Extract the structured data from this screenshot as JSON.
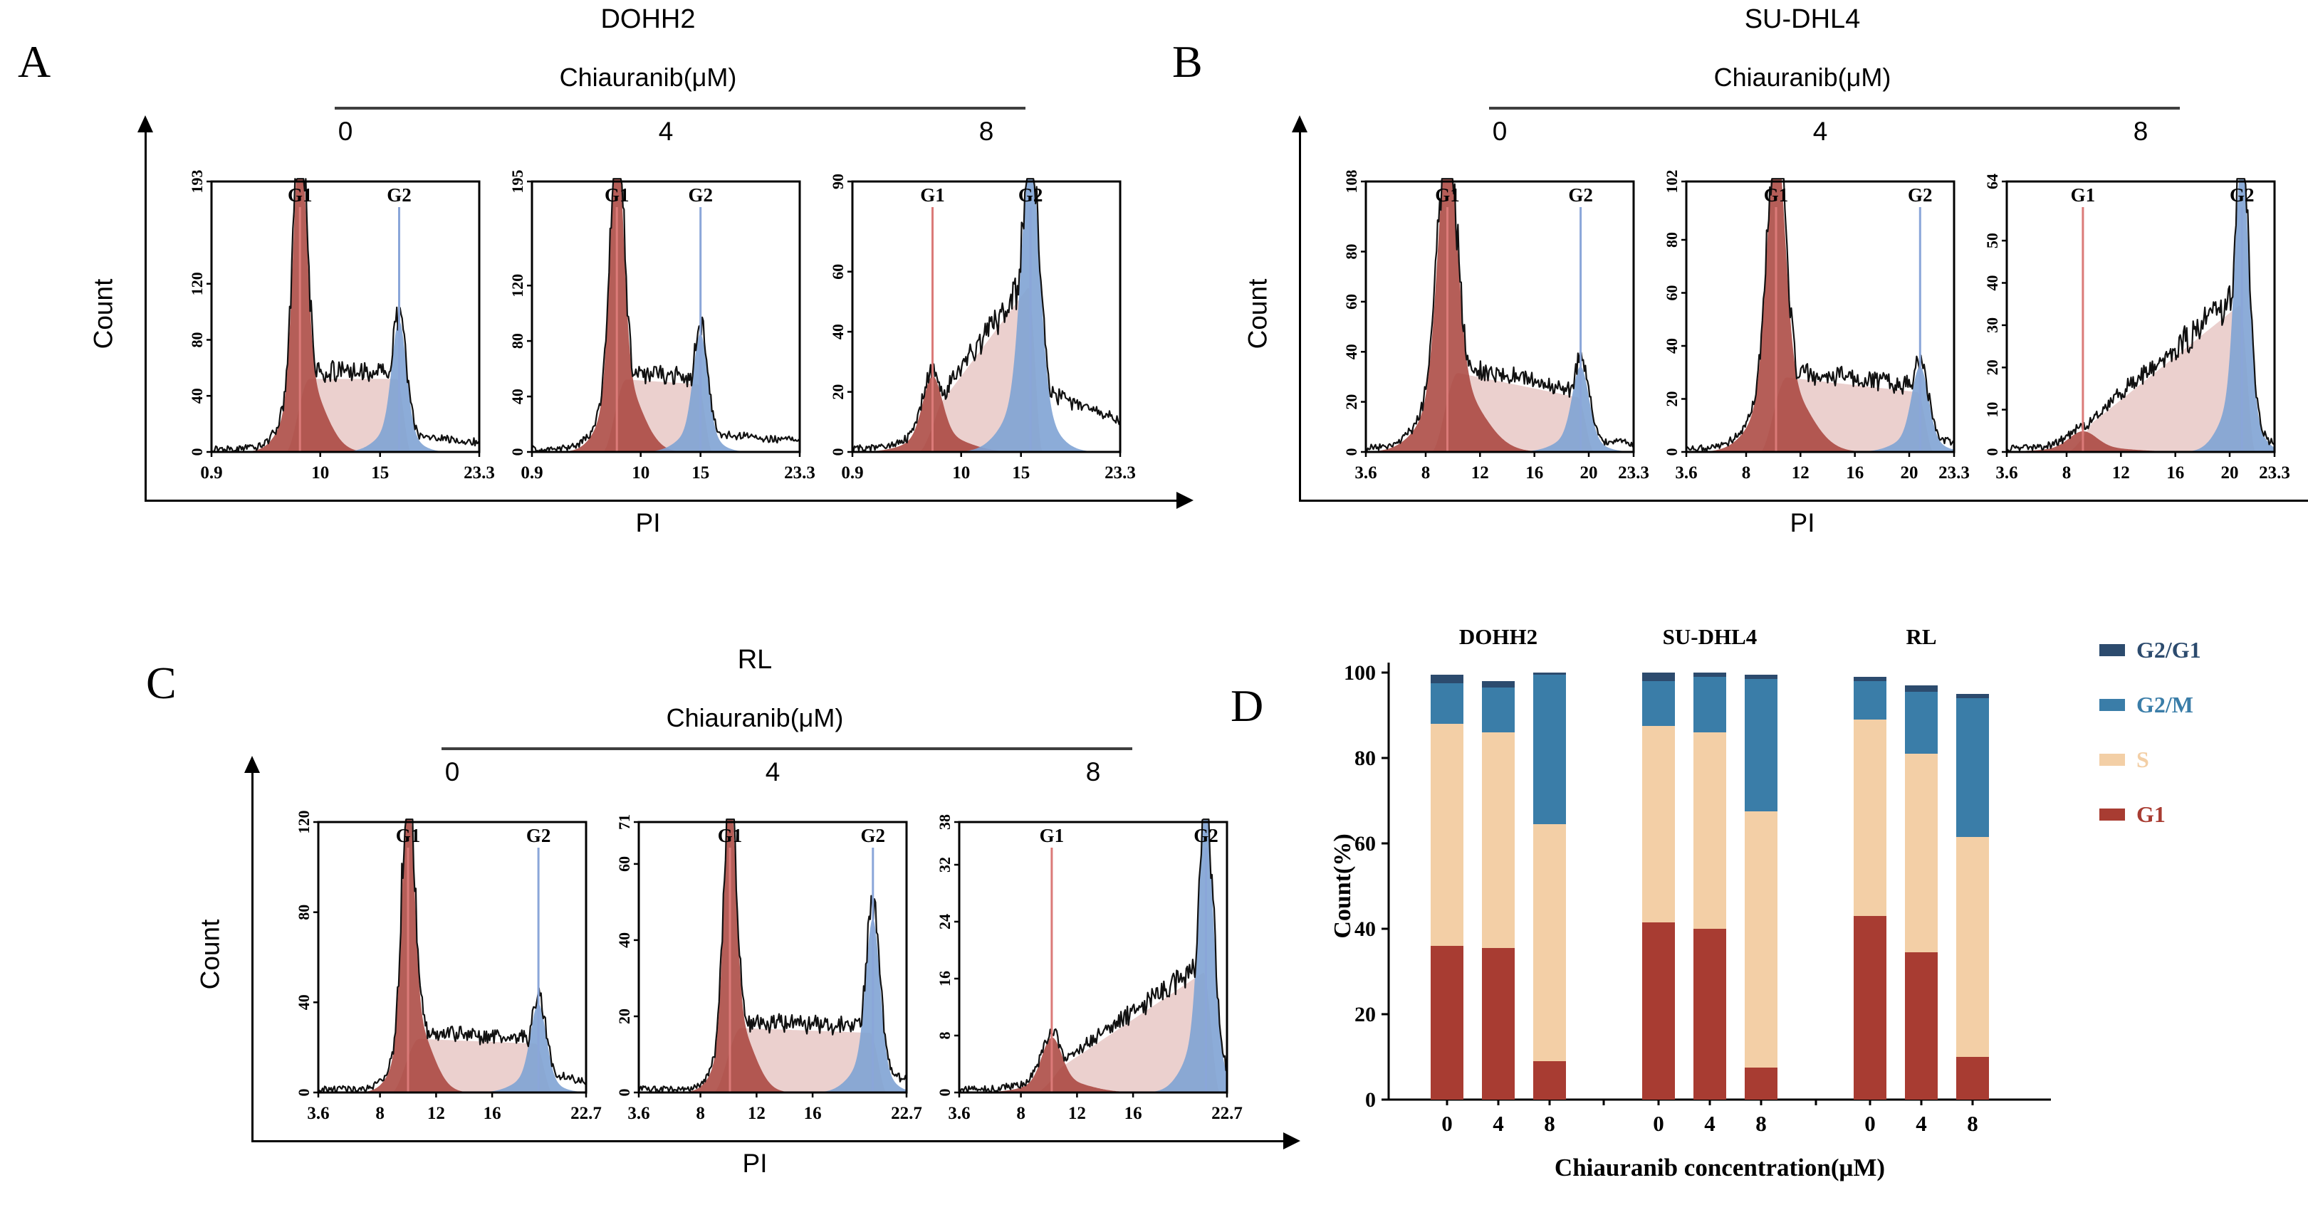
{
  "colors": {
    "g1_fill": "#a8423b",
    "s_fill": "#dba9a5",
    "g2_fill": "#7fa3d4",
    "g1_line": "#db7a78",
    "g2_line": "#8aa6d9",
    "trace": "#111111"
  },
  "chart_data": [
    {
      "panel_letter": "A",
      "type": "flow_histograms",
      "title": "DOHH2",
      "treatment": "Chiauranib(μM)",
      "doses": [
        "0",
        "4",
        "8"
      ],
      "xlabel": "PI",
      "ylabel": "Count",
      "xlim": [
        0.9,
        23.3
      ],
      "xticks": [
        "0.9",
        "10",
        "15",
        "23.3"
      ],
      "marker_labels": [
        "G1",
        "G2"
      ],
      "plots": [
        {
          "dose": "0",
          "ymax": 193,
          "yticks": [
            0,
            40,
            80,
            120,
            193
          ],
          "g1_pos": 8.3,
          "g2_pos": 16.6,
          "g1_peak": 0.93,
          "g2_peak": 0.4,
          "s_start": 0.27,
          "s_end": 0.27,
          "g1_sigma": 0.55,
          "g2_sigma": 0.6,
          "tail": 0.05
        },
        {
          "dose": "4",
          "ymax": 195,
          "yticks": [
            0,
            40,
            80,
            120,
            195
          ],
          "g1_pos": 8.0,
          "g2_pos": 15.0,
          "g1_peak": 0.93,
          "g2_peak": 0.36,
          "s_start": 0.27,
          "s_end": 0.25,
          "g1_sigma": 0.55,
          "g2_sigma": 0.6,
          "tail": 0.06
        },
        {
          "dose": "8",
          "ymax": 90,
          "yticks": [
            0,
            20,
            40,
            60,
            90
          ],
          "g1_pos": 7.6,
          "g2_pos": 15.8,
          "g1_peak": 0.22,
          "g2_peak": 0.9,
          "s_start": 0.14,
          "s_end": 0.62,
          "g1_sigma": 0.8,
          "g2_sigma": 0.75,
          "tail": 0.22
        }
      ]
    },
    {
      "panel_letter": "B",
      "type": "flow_histograms",
      "title": "SU-DHL4",
      "treatment": "Chiauranib(μM)",
      "doses": [
        "0",
        "4",
        "8"
      ],
      "xlabel": "PI",
      "ylabel": "Count",
      "xlim": [
        3.6,
        23.3
      ],
      "xticks": [
        "3.6",
        "8",
        "12",
        "16",
        "20",
        "23.3"
      ],
      "marker_labels": [
        "G1",
        "G2"
      ],
      "plots": [
        {
          "dose": "0",
          "ymax": 108,
          "yticks": [
            0,
            20,
            40,
            60,
            80,
            108
          ],
          "g1_pos": 9.6,
          "g2_pos": 19.4,
          "g1_peak": 0.9,
          "g2_peak": 0.26,
          "s_start": 0.3,
          "s_end": 0.2,
          "g1_sigma": 0.7,
          "g2_sigma": 0.6,
          "tail": 0.04
        },
        {
          "dose": "4",
          "ymax": 102,
          "yticks": [
            0,
            20,
            40,
            60,
            80,
            102
          ],
          "g1_pos": 10.2,
          "g2_pos": 20.8,
          "g1_peak": 0.92,
          "g2_peak": 0.26,
          "s_start": 0.28,
          "s_end": 0.22,
          "g1_sigma": 0.65,
          "g2_sigma": 0.6,
          "tail": 0.05
        },
        {
          "dose": "8",
          "ymax": 64,
          "yticks": [
            0,
            10,
            20,
            30,
            40,
            50,
            64
          ],
          "g1_pos": 9.2,
          "g2_pos": 20.9,
          "g1_peak": 0.06,
          "g2_peak": 0.9,
          "s_start": 0.08,
          "s_end": 0.55,
          "g1_sigma": 1.0,
          "g2_sigma": 0.5,
          "tail": 0.05
        }
      ]
    },
    {
      "panel_letter": "C",
      "type": "flow_histograms",
      "title": "RL",
      "treatment": "Chiauranib(μM)",
      "doses": [
        "0",
        "4",
        "8"
      ],
      "xlabel": "PI",
      "ylabel": "Count",
      "xlim": [
        3.6,
        22.7
      ],
      "xticks": [
        "3.6",
        "8",
        "12",
        "16",
        "22.7"
      ],
      "marker_labels": [
        "G1",
        "G2"
      ],
      "plots": [
        {
          "dose": "0",
          "ymax": 120,
          "yticks": [
            0,
            40,
            80,
            120
          ],
          "g1_pos": 10.0,
          "g2_pos": 19.3,
          "g1_peak": 0.92,
          "g2_peak": 0.27,
          "s_start": 0.2,
          "s_end": 0.18,
          "g1_sigma": 0.42,
          "g2_sigma": 0.55,
          "tail": 0.06
        },
        {
          "dose": "4",
          "ymax": 71,
          "yticks": [
            0,
            20,
            40,
            60,
            71
          ],
          "g1_pos": 10.1,
          "g2_pos": 20.3,
          "g1_peak": 0.9,
          "g2_peak": 0.53,
          "s_start": 0.24,
          "s_end": 0.22,
          "g1_sigma": 0.42,
          "g2_sigma": 0.5,
          "tail": 0.08
        },
        {
          "dose": "8",
          "ymax": 38,
          "yticks": [
            0,
            8,
            16,
            24,
            32,
            38
          ],
          "g1_pos": 10.2,
          "g2_pos": 21.2,
          "g1_peak": 0.16,
          "g2_peak": 0.87,
          "s_start": 0.07,
          "s_end": 0.45,
          "g1_sigma": 0.7,
          "g2_sigma": 0.5,
          "tail": 0.05
        }
      ]
    },
    {
      "panel_letter": "D",
      "type": "stacked_bar",
      "ylabel": "Count(%)",
      "xlabel": "Chiauranib concentration(μM)",
      "ylim": [
        0,
        100
      ],
      "yticks": [
        0,
        20,
        40,
        60,
        80,
        100
      ],
      "groups": [
        "DOHH2",
        "SU-DHL4",
        "RL"
      ],
      "doses": [
        "0",
        "4",
        "8"
      ],
      "series": [
        {
          "name": "G1",
          "color": "#a83c32",
          "values": [
            [
              36,
              35.5,
              9
            ],
            [
              41.5,
              40,
              7.5
            ],
            [
              43,
              34.5,
              10
            ]
          ]
        },
        {
          "name": "S",
          "color": "#f3cfa6",
          "values": [
            [
              52,
              50.5,
              55.5
            ],
            [
              46,
              46,
              60
            ],
            [
              46,
              46.5,
              51.5
            ]
          ]
        },
        {
          "name": "G2/M",
          "color": "#3a7da8",
          "values": [
            [
              9.5,
              10.5,
              35
            ],
            [
              10.5,
              13,
              31
            ],
            [
              9,
              14.5,
              32.5
            ]
          ]
        },
        {
          "name": "G2/G1",
          "color": "#2c4b6e",
          "values": [
            [
              2,
              1.5,
              0.5
            ],
            [
              2,
              1,
              1
            ],
            [
              1,
              1.5,
              1
            ]
          ]
        }
      ],
      "legend_order": [
        "G2/G1",
        "G2/M",
        "S",
        "G1"
      ]
    }
  ]
}
